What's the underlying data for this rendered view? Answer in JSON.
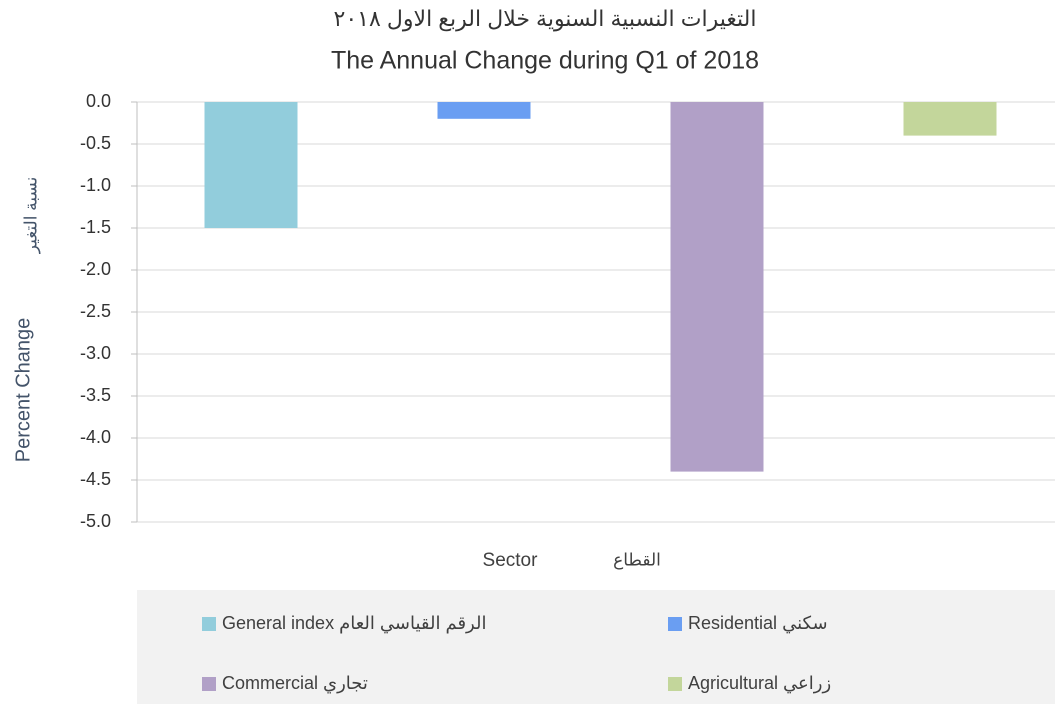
{
  "chart_data": {
    "type": "bar",
    "title": "التغيرات النسبية السنوية خلال الربع الاول ٢٠١٨",
    "subtitle": "The Annual Change during Q1 of 2018",
    "y_label": "Percent Change",
    "y_label_ar": "نسبة التغير",
    "x_label": "Sector",
    "x_label_ar": "القطاع",
    "categories": [
      null
    ],
    "series": [
      {
        "name": "General index الرقم القياسي العام",
        "color": "#92cddc",
        "values": [
          -1.5
        ]
      },
      {
        "name": "Residential سكني",
        "color": "#6a9ef2",
        "values": [
          -0.2
        ]
      },
      {
        "name": "Commercial تجاري",
        "color": "#b1a0c7",
        "values": [
          -4.4
        ]
      },
      {
        "name": "Agricultural  زراعي",
        "color": "#c3d69b",
        "values": [
          -0.4
        ]
      }
    ],
    "ylim": [
      -5,
      0
    ],
    "yticks": [
      {
        "value": 0,
        "label": "0.0"
      },
      {
        "value": -0.5,
        "label": "-0.5"
      },
      {
        "value": -1,
        "label": "-1.0"
      },
      {
        "value": -1.5,
        "label": "-1.5"
      },
      {
        "value": -2,
        "label": "-2.0"
      },
      {
        "value": -2.5,
        "label": "-2.5"
      },
      {
        "value": -3,
        "label": "-3.0"
      },
      {
        "value": -3.5,
        "label": "-3.5"
      },
      {
        "value": -4,
        "label": "-4.0"
      },
      {
        "value": -4.5,
        "label": "-4.5"
      },
      {
        "value": -5,
        "label": "-5.0"
      }
    ],
    "grid": true
  }
}
